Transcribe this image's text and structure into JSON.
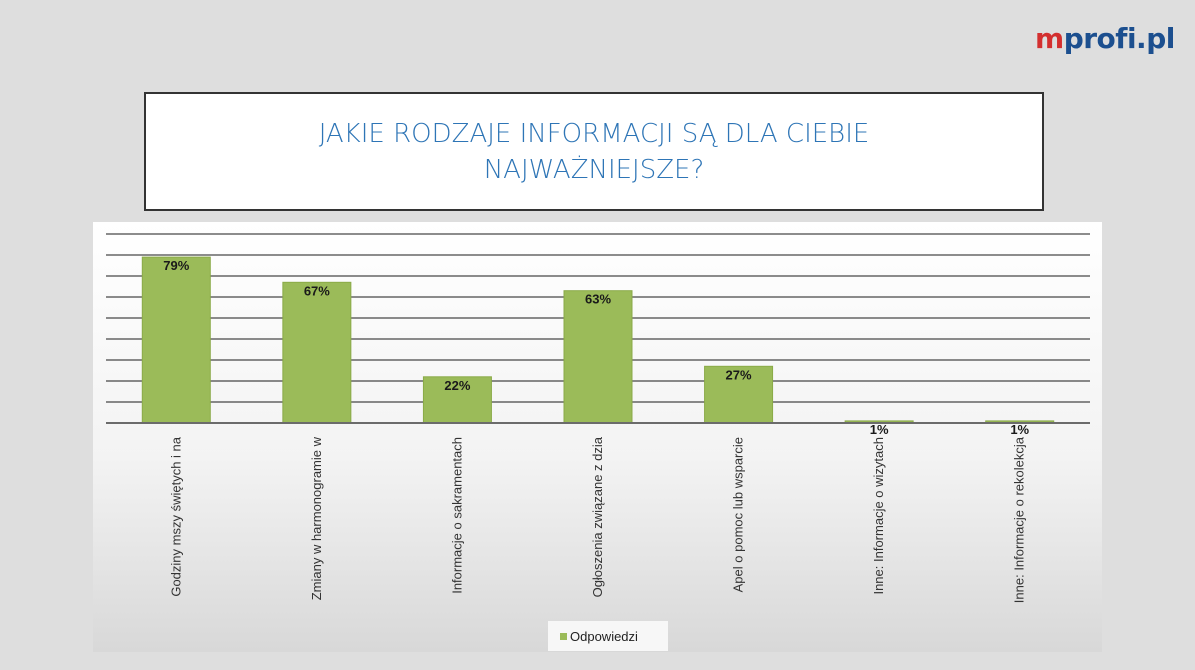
{
  "logo": {
    "text_m": "m",
    "text_rest": "profi.pl"
  },
  "title": "JAKIE RODZAJE INFORMACJI SĄ DLA CIEBIE NAJWAŻNIEJSZE?",
  "colors": {
    "bar": "#9bbb59",
    "bar_border": "#8aaa48",
    "title": "#2e75b6",
    "brand_blue": "#1c4f8f",
    "brand_red": "#d32f2f"
  },
  "chart_data": {
    "type": "bar",
    "categories": [
      "Godziny mszy świętych i na",
      "Zmiany w harmonogramie w",
      "Informacje o sakramentach",
      "Ogłoszenia związane z dzia",
      "Apel o pomoc lub wsparcie",
      "Inne: Informacje o wizytach",
      "Inne: Informacje o rekolekcja"
    ],
    "series": [
      {
        "name": "Odpowiedzi",
        "values": [
          79,
          67,
          22,
          63,
          27,
          1,
          1
        ]
      }
    ],
    "data_labels": [
      "79%",
      "67%",
      "22%",
      "63%",
      "27%",
      "1%",
      "1%"
    ],
    "ylim": [
      0,
      90
    ],
    "grid": true,
    "legend_position": "bottom"
  }
}
